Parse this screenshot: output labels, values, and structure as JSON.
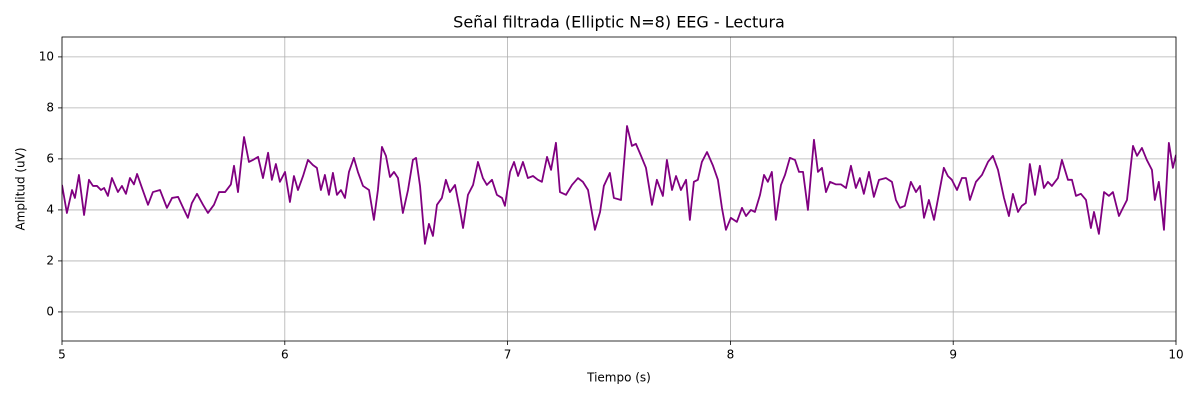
{
  "chart_data": {
    "type": "line",
    "title": "Señal filtrada (Elliptic N=8) EEG - Lectura",
    "x_label": "Tiempo (s)",
    "y_label": "Amplitud (uV)",
    "xlim": [
      5,
      10
    ],
    "xticks": [
      5,
      6,
      7,
      8,
      9,
      10
    ],
    "ylim": [
      -1.14,
      10.78
    ],
    "yticks": [
      0,
      2,
      4,
      6,
      8,
      10
    ],
    "grid": true,
    "x": [
      5.0,
      5.022,
      5.045,
      5.058,
      5.076,
      5.099,
      5.121,
      5.139,
      5.157,
      5.175,
      5.189,
      5.206,
      5.224,
      5.251,
      5.269,
      5.287,
      5.305,
      5.323,
      5.337,
      5.359,
      5.386,
      5.408,
      5.44,
      5.471,
      5.494,
      5.521,
      5.548,
      5.565,
      5.583,
      5.606,
      5.633,
      5.655,
      5.682,
      5.705,
      5.732,
      5.758,
      5.772,
      5.79,
      5.803,
      5.817,
      5.839,
      5.857,
      5.88,
      5.902,
      5.925,
      5.942,
      5.96,
      5.978,
      6.001,
      6.023,
      6.041,
      6.059,
      6.082,
      6.104,
      6.126,
      6.144,
      6.162,
      6.18,
      6.198,
      6.216,
      6.234,
      6.252,
      6.27,
      6.288,
      6.31,
      6.328,
      6.351,
      6.378,
      6.4,
      6.418,
      6.436,
      6.454,
      6.472,
      6.49,
      6.508,
      6.53,
      6.553,
      6.575,
      6.589,
      6.607,
      6.629,
      6.647,
      6.665,
      6.683,
      6.705,
      6.723,
      6.741,
      6.764,
      6.786,
      6.8,
      6.822,
      6.845,
      6.867,
      6.889,
      6.907,
      6.93,
      6.952,
      6.975,
      6.988,
      7.011,
      7.029,
      7.047,
      7.069,
      7.091,
      7.114,
      7.136,
      7.154,
      7.177,
      7.195,
      7.217,
      7.235,
      7.262,
      7.289,
      7.316,
      7.338,
      7.361,
      7.392,
      7.415,
      7.432,
      7.459,
      7.477,
      7.509,
      7.536,
      7.558,
      7.576,
      7.599,
      7.621,
      7.648,
      7.67,
      7.697,
      7.715,
      7.738,
      7.756,
      7.778,
      7.801,
      7.818,
      7.836,
      7.854,
      7.872,
      7.895,
      7.922,
      7.944,
      7.962,
      7.98,
      8.002,
      8.029,
      8.052,
      8.07,
      8.092,
      8.11,
      8.133,
      8.151,
      8.168,
      8.186,
      8.204,
      8.227,
      8.245,
      8.267,
      8.29,
      8.308,
      8.326,
      8.348,
      8.375,
      8.393,
      8.411,
      8.429,
      8.447,
      8.474,
      8.496,
      8.519,
      8.541,
      8.563,
      8.581,
      8.599,
      8.622,
      8.644,
      8.667,
      8.698,
      8.725,
      8.743,
      8.761,
      8.783,
      8.81,
      8.833,
      8.851,
      8.869,
      8.891,
      8.914,
      8.936,
      8.958,
      8.976,
      8.994,
      9.017,
      9.039,
      9.057,
      9.075,
      9.102,
      9.129,
      9.156,
      9.178,
      9.201,
      9.228,
      9.25,
      9.268,
      9.291,
      9.308,
      9.326,
      9.344,
      9.367,
      9.389,
      9.407,
      9.425,
      9.443,
      9.47,
      9.488,
      9.515,
      9.533,
      9.551,
      9.573,
      9.596,
      9.618,
      9.632,
      9.654,
      9.677,
      9.699,
      9.717,
      9.744,
      9.762,
      9.78,
      9.807,
      9.825,
      9.847,
      9.869,
      9.892,
      9.905,
      9.923,
      9.946,
      9.968,
      9.986,
      10.0
    ],
    "series": [
      {
        "name": "EEG",
        "color": "#800080",
        "values": [
          4.98,
          3.88,
          4.78,
          4.47,
          5.37,
          3.8,
          5.18,
          4.94,
          4.94,
          4.78,
          4.86,
          4.55,
          5.25,
          4.7,
          4.94,
          4.63,
          5.25,
          5.0,
          5.41,
          4.86,
          4.2,
          4.7,
          4.78,
          4.08,
          4.47,
          4.51,
          4.0,
          3.69,
          4.27,
          4.63,
          4.2,
          3.88,
          4.2,
          4.7,
          4.7,
          5.0,
          5.73,
          4.7,
          5.8,
          6.86,
          5.88,
          5.96,
          6.08,
          5.25,
          6.24,
          5.18,
          5.8,
          5.1,
          5.49,
          4.31,
          5.33,
          4.78,
          5.33,
          5.96,
          5.76,
          5.65,
          4.78,
          5.37,
          4.59,
          5.45,
          4.59,
          4.78,
          4.47,
          5.49,
          6.04,
          5.49,
          4.94,
          4.78,
          3.61,
          4.78,
          6.47,
          6.12,
          5.29,
          5.49,
          5.25,
          3.88,
          4.78,
          5.96,
          6.04,
          4.94,
          2.67,
          3.45,
          2.98,
          4.2,
          4.47,
          5.18,
          4.7,
          4.98,
          4.0,
          3.29,
          4.59,
          4.98,
          5.88,
          5.25,
          4.98,
          5.18,
          4.59,
          4.47,
          4.16,
          5.49,
          5.88,
          5.33,
          5.88,
          5.25,
          5.33,
          5.18,
          5.1,
          6.08,
          5.57,
          6.63,
          4.7,
          4.59,
          4.98,
          5.25,
          5.1,
          4.78,
          3.22,
          3.92,
          4.94,
          5.45,
          4.47,
          4.39,
          7.29,
          6.51,
          6.59,
          6.12,
          5.65,
          4.2,
          5.18,
          4.55,
          5.96,
          4.78,
          5.33,
          4.78,
          5.18,
          3.61,
          5.1,
          5.18,
          5.88,
          6.27,
          5.73,
          5.18,
          4.08,
          3.22,
          3.69,
          3.53,
          4.08,
          3.76,
          4.0,
          3.92,
          4.59,
          5.37,
          5.1,
          5.49,
          3.61,
          4.98,
          5.37,
          6.04,
          5.96,
          5.49,
          5.49,
          4.0,
          6.75,
          5.49,
          5.65,
          4.7,
          5.1,
          5.0,
          5.0,
          4.86,
          5.73,
          4.86,
          5.25,
          4.63,
          5.49,
          4.51,
          5.18,
          5.25,
          5.1,
          4.39,
          4.08,
          4.16,
          5.1,
          4.7,
          4.94,
          3.69,
          4.39,
          3.61,
          4.63,
          5.65,
          5.33,
          5.18,
          4.78,
          5.25,
          5.25,
          4.39,
          5.1,
          5.37,
          5.88,
          6.12,
          5.57,
          4.47,
          3.76,
          4.63,
          3.92,
          4.16,
          4.27,
          5.8,
          4.59,
          5.73,
          4.86,
          5.1,
          4.94,
          5.25,
          5.96,
          5.18,
          5.18,
          4.55,
          4.63,
          4.39,
          3.29,
          3.92,
          3.06,
          4.7,
          4.55,
          4.7,
          3.76,
          4.08,
          4.39,
          6.51,
          6.12,
          6.43,
          5.96,
          5.57,
          4.39,
          5.1,
          3.22,
          6.63,
          5.65,
          6.16
        ]
      }
    ]
  }
}
